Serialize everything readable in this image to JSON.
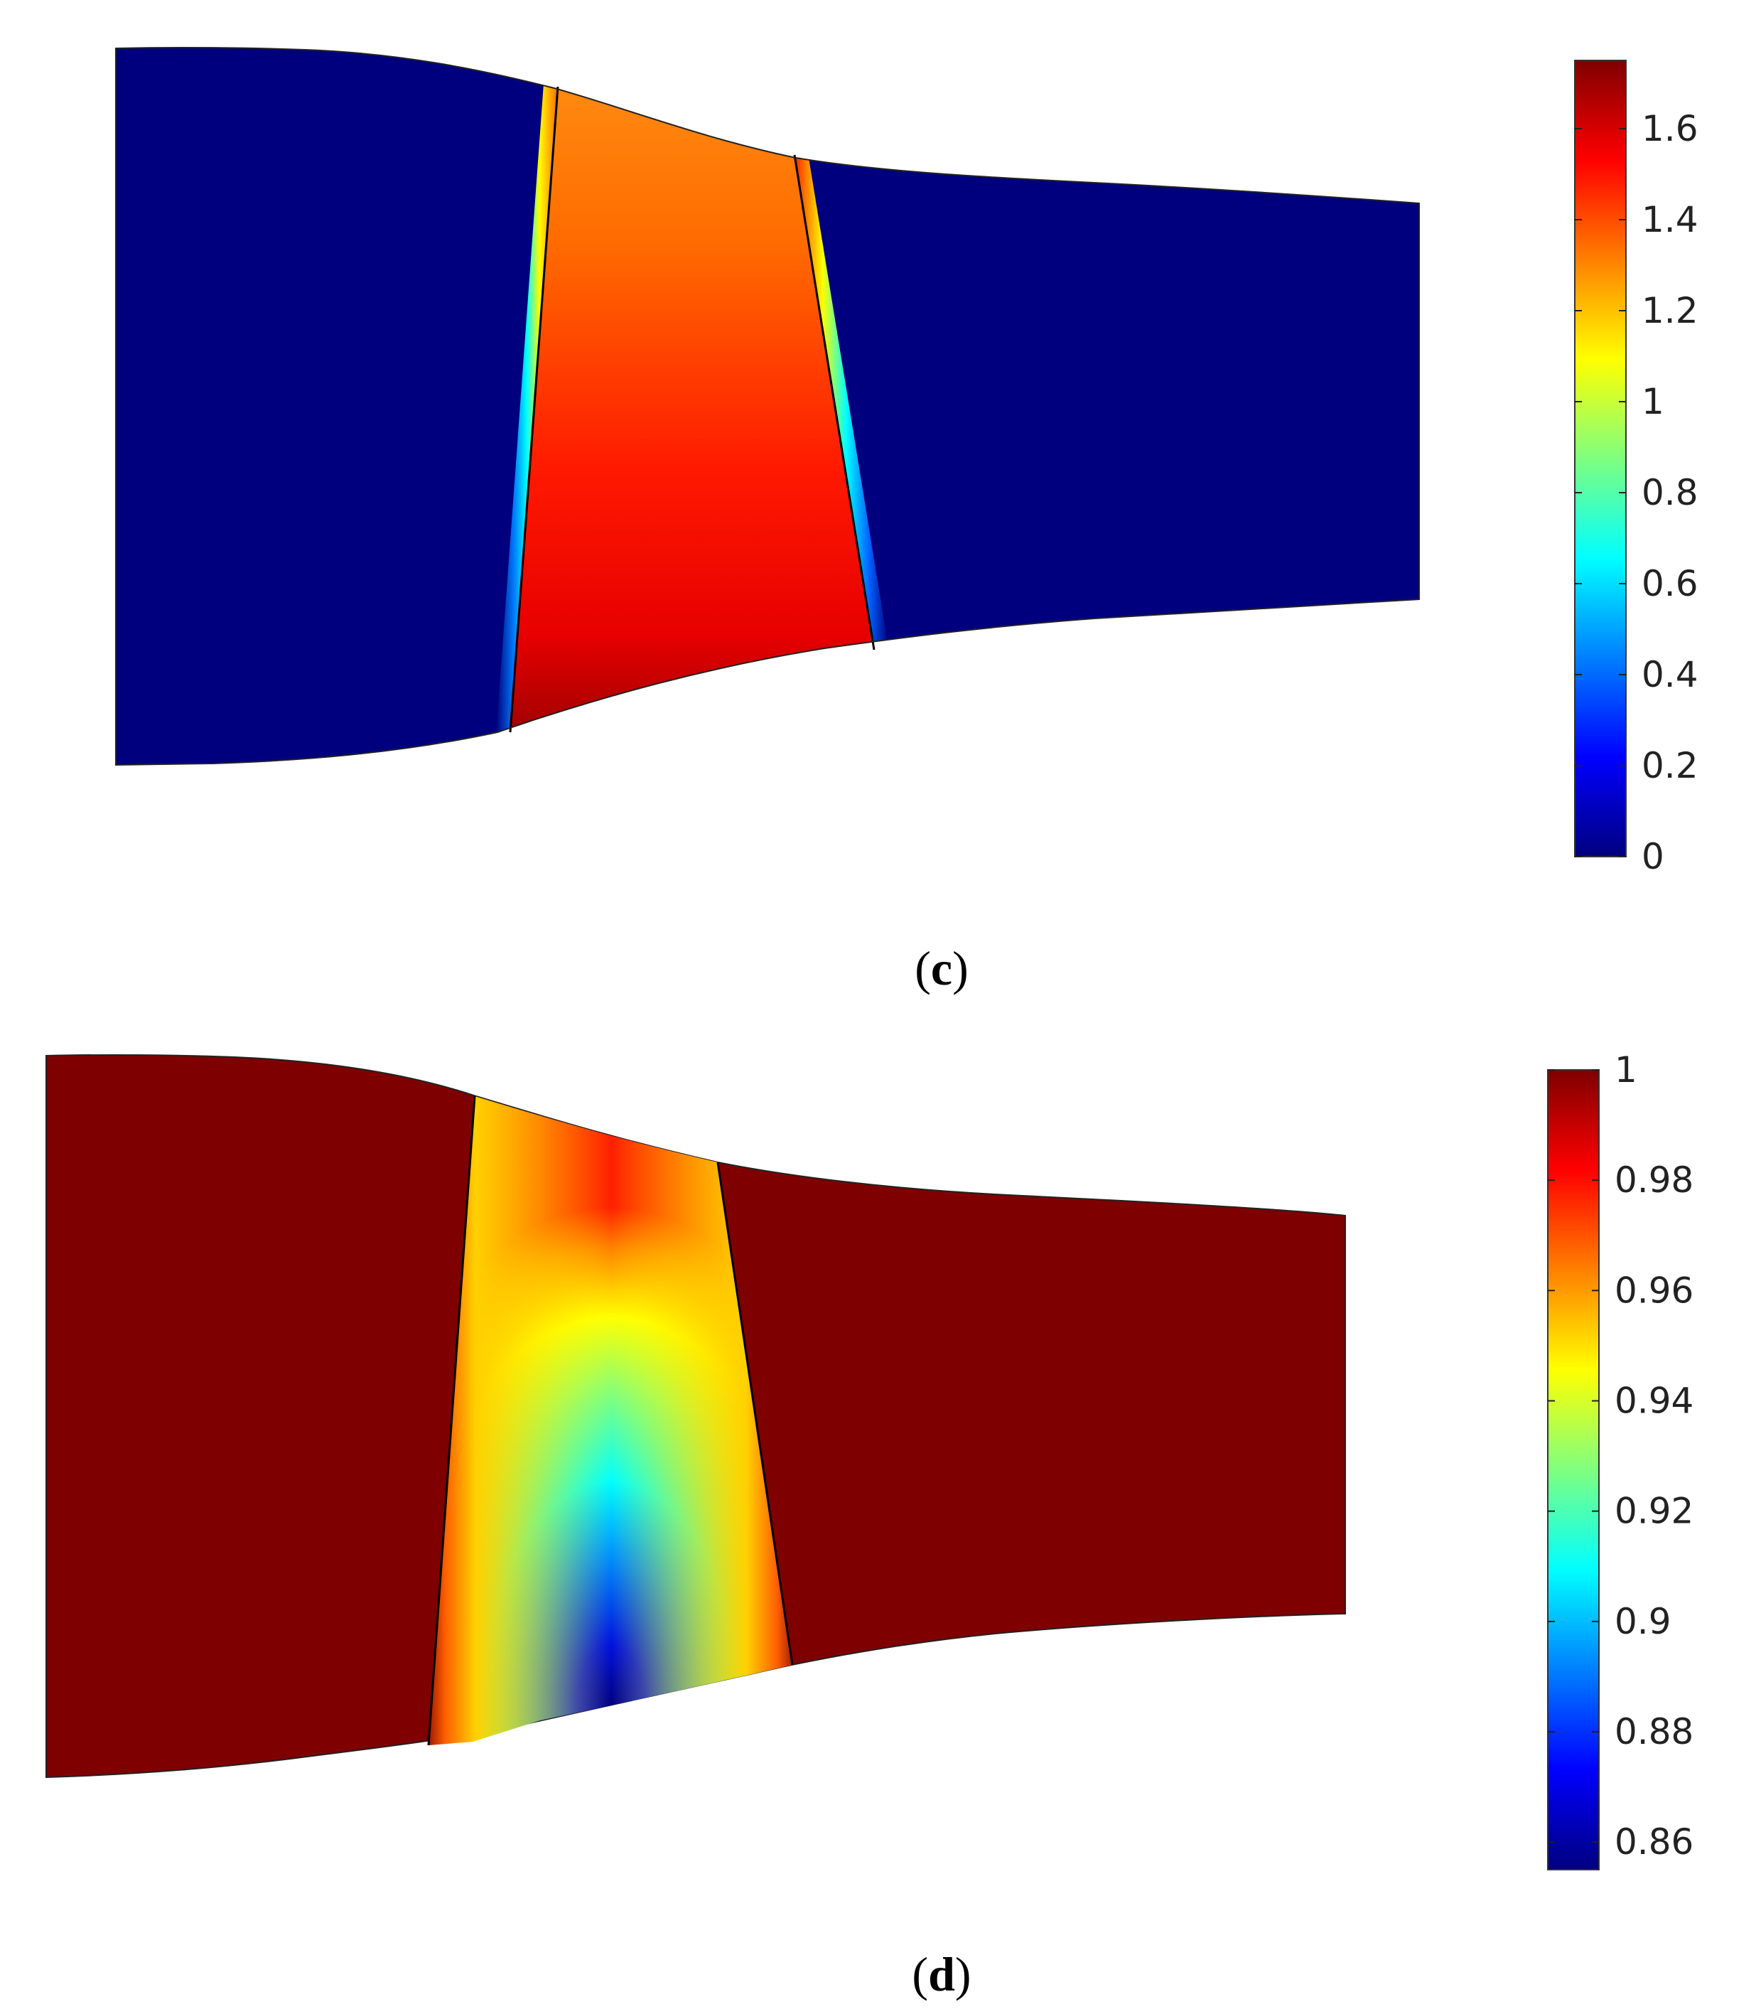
{
  "panels": [
    {
      "id": "c",
      "label_open": "(",
      "label_letter": "c",
      "label_close": ")",
      "colorbar": {
        "min": 0,
        "max": 1.75,
        "ticks": [
          {
            "value": 0,
            "label": "0"
          },
          {
            "value": 0.2,
            "label": "0.2"
          },
          {
            "value": 0.4,
            "label": "0.4"
          },
          {
            "value": 0.6,
            "label": "0.6"
          },
          {
            "value": 0.8,
            "label": "0.8"
          },
          {
            "value": 1,
            "label": "1"
          },
          {
            "value": 1.2,
            "label": "1.2"
          },
          {
            "value": 1.4,
            "label": "1.4"
          },
          {
            "value": 1.6,
            "label": "1.6"
          }
        ]
      }
    },
    {
      "id": "d",
      "label_open": "(",
      "label_letter": "d",
      "label_close": ")",
      "colorbar": {
        "min": 0.855,
        "max": 1.0,
        "ticks": [
          {
            "value": 0.86,
            "label": "0.86"
          },
          {
            "value": 0.88,
            "label": "0.88"
          },
          {
            "value": 0.9,
            "label": "0.9"
          },
          {
            "value": 0.92,
            "label": "0.92"
          },
          {
            "value": 0.94,
            "label": "0.94"
          },
          {
            "value": 0.96,
            "label": "0.96"
          },
          {
            "value": 0.98,
            "label": "0.98"
          },
          {
            "value": 1,
            "label": "1"
          }
        ]
      }
    }
  ],
  "colormap": "jet",
  "colors": {
    "low": "#00007f",
    "high": "#7f0000"
  }
}
